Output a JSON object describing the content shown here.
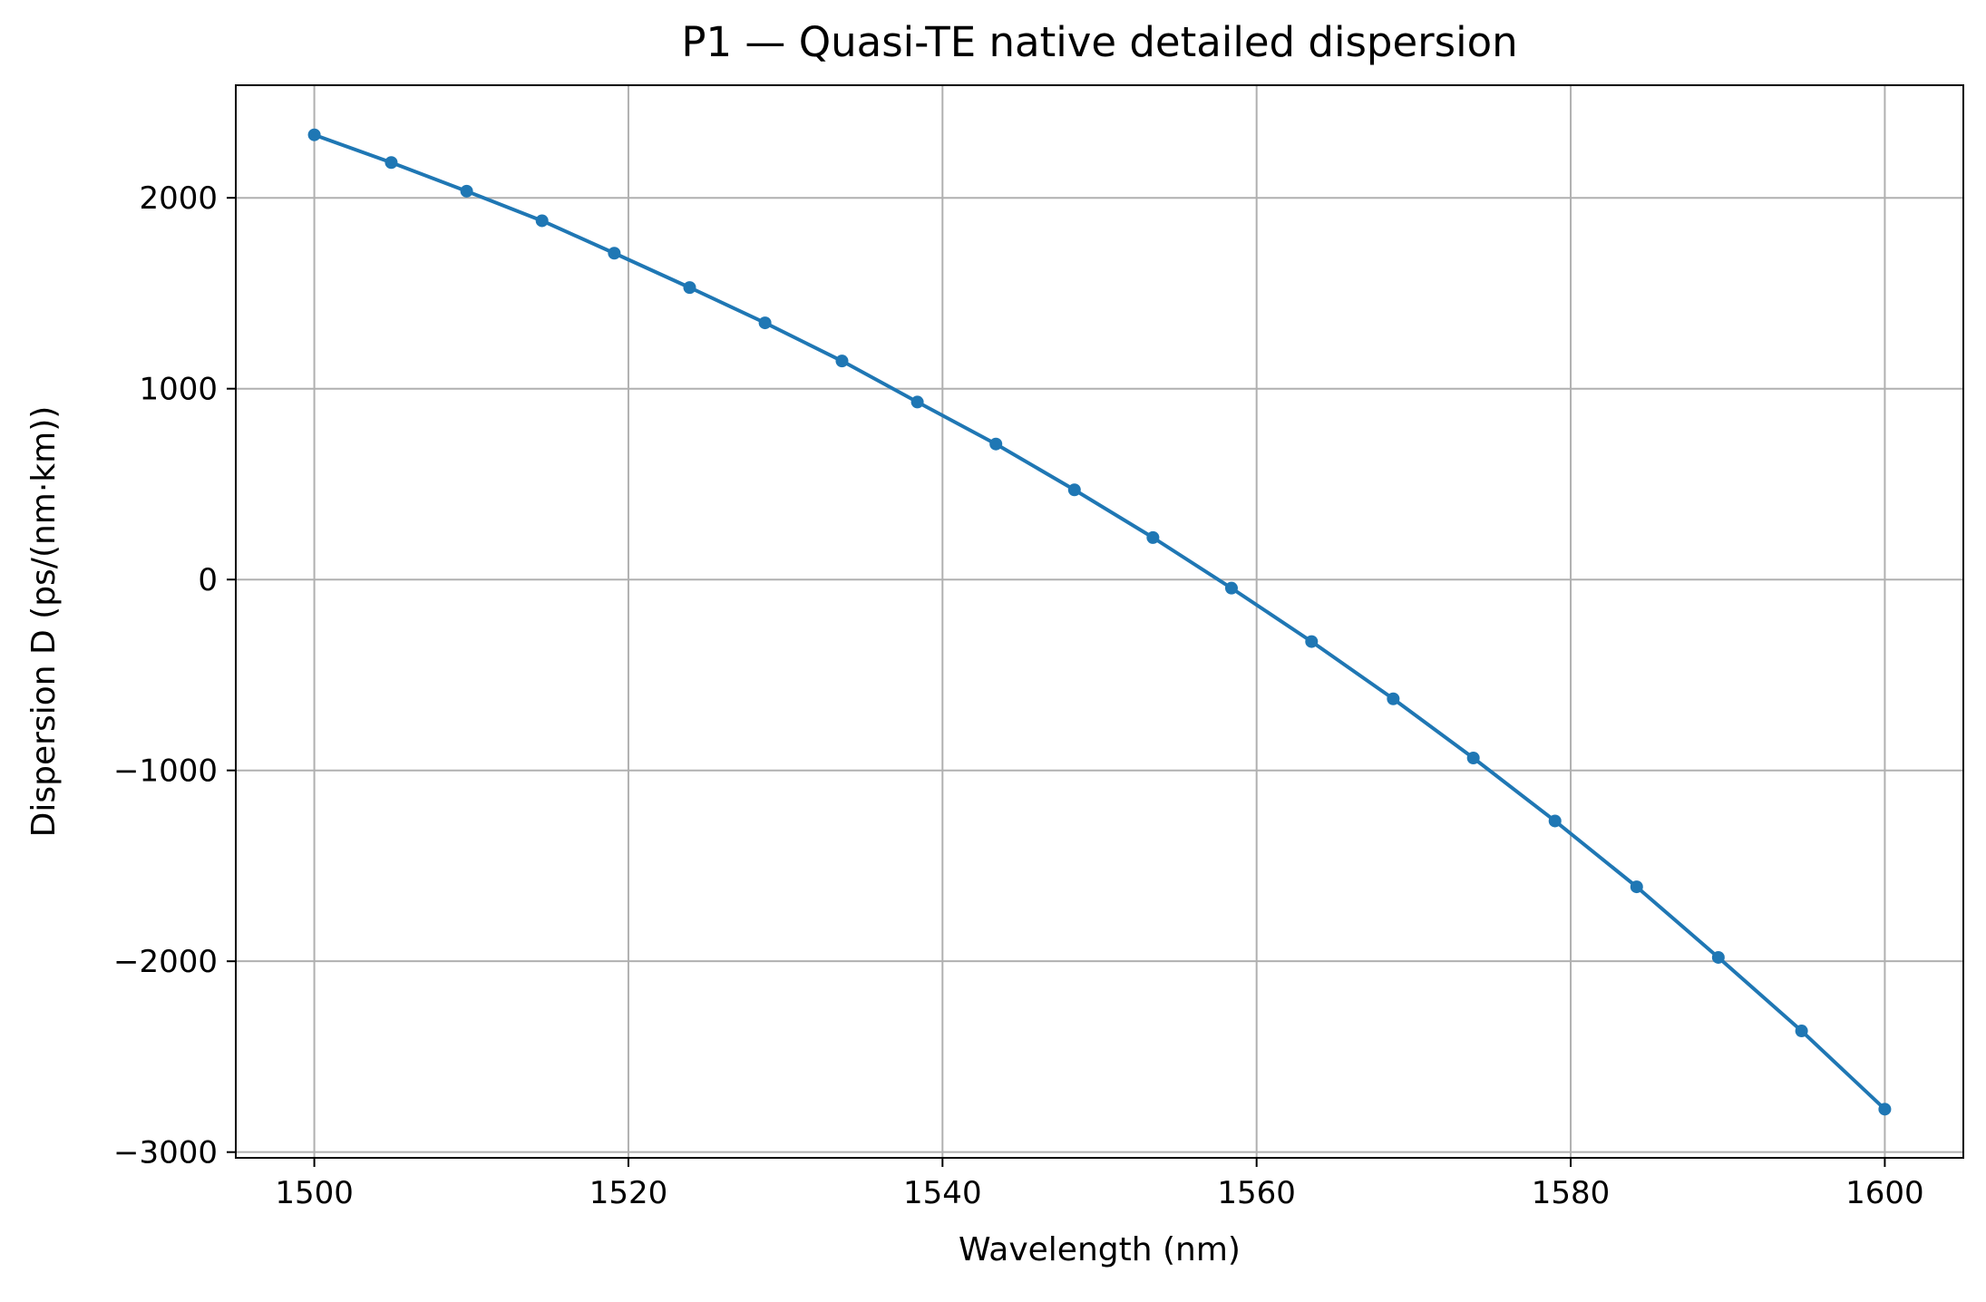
{
  "chart_data": {
    "type": "line",
    "title": "P1 — Quasi-TE native detailed dispersion",
    "xlabel": "Wavelength (nm)",
    "ylabel": "Dispersion D (ps/(nm·km))",
    "xlim": [
      1495,
      1605
    ],
    "ylim": [
      -3030,
      2590
    ],
    "xticks": [
      1500,
      1520,
      1540,
      1560,
      1580,
      1600
    ],
    "yticks": [
      -3000,
      -2000,
      -1000,
      0,
      1000,
      2000
    ],
    "xtick_labels": [
      "1500",
      "1520",
      "1540",
      "1560",
      "1580",
      "1600"
    ],
    "ytick_labels": [
      "−3000",
      "−2000",
      "−1000",
      "0",
      "1000",
      "2000"
    ],
    "grid": true,
    "series": [
      {
        "color": "#1f77b4",
        "marker": "circle",
        "x": [
          1500.0,
          1504.9,
          1509.7,
          1514.5,
          1519.1,
          1523.9,
          1528.7,
          1533.6,
          1538.4,
          1543.4,
          1548.4,
          1553.4,
          1558.4,
          1563.5,
          1568.7,
          1573.8,
          1579.0,
          1584.2,
          1589.4,
          1594.7,
          1600.0
        ],
        "y": [
          2330,
          2185,
          2035,
          1880,
          1710,
          1530,
          1345,
          1145,
          930,
          710,
          470,
          220,
          -45,
          -325,
          -625,
          -935,
          -1265,
          -1610,
          -1980,
          -2365,
          -2775
        ]
      }
    ]
  }
}
